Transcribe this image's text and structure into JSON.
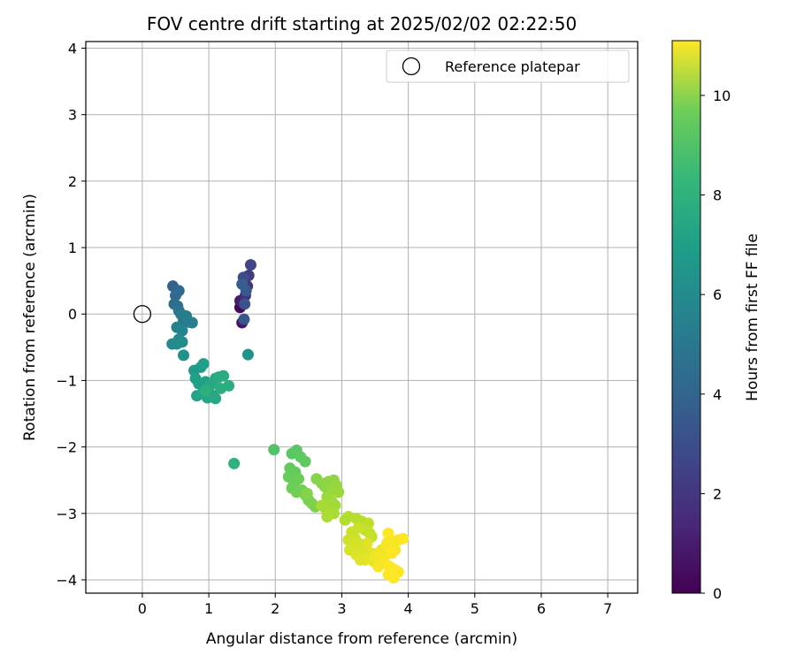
{
  "chart_data": {
    "type": "scatter",
    "title": "FOV centre drift starting at 2025/02/02 02:22:50",
    "xlabel": "Angular distance from reference (arcmin)",
    "ylabel": "Rotation from reference (arcmin)",
    "xlim": [
      -0.85,
      7.45
    ],
    "ylim": [
      -4.2,
      4.1
    ],
    "x_ticks": [
      0,
      1,
      2,
      3,
      4,
      5,
      6,
      7
    ],
    "y_ticks": [
      -4,
      -3,
      -2,
      -1,
      0,
      1,
      2,
      3,
      4
    ],
    "grid": true,
    "legend": {
      "placement": "top-right",
      "entries": [
        "Reference platepar"
      ]
    },
    "reference_point": {
      "name": "Reference platepar",
      "x": 0,
      "y": 0,
      "marker": "open-circle"
    },
    "colorbar": {
      "label": "Hours from first FF file",
      "min": 0,
      "max": 11.1,
      "ticks": [
        0,
        2,
        4,
        6,
        8,
        10
      ],
      "colormap": "viridis"
    },
    "points": [
      {
        "x": 1.47,
        "y": 0.1,
        "t": 0.2
      },
      {
        "x": 1.48,
        "y": 0.18,
        "t": 0.3
      },
      {
        "x": 1.5,
        "y": -0.13,
        "t": 0.6
      },
      {
        "x": 1.47,
        "y": 0.2,
        "t": 0.9
      },
      {
        "x": 1.55,
        "y": 0.28,
        "t": 1.5
      },
      {
        "x": 1.58,
        "y": 0.42,
        "t": 1.8
      },
      {
        "x": 1.6,
        "y": 0.58,
        "t": 2.0
      },
      {
        "x": 1.63,
        "y": 0.74,
        "t": 2.3
      },
      {
        "x": 1.52,
        "y": 0.55,
        "t": 2.6
      },
      {
        "x": 1.54,
        "y": 0.15,
        "t": 2.8
      },
      {
        "x": 1.53,
        "y": -0.08,
        "t": 3.0
      },
      {
        "x": 1.56,
        "y": 0.35,
        "t": 3.1
      },
      {
        "x": 1.5,
        "y": 0.45,
        "t": 3.3
      },
      {
        "x": 0.46,
        "y": 0.42,
        "t": 3.5
      },
      {
        "x": 0.55,
        "y": 0.35,
        "t": 3.7
      },
      {
        "x": 0.5,
        "y": 0.28,
        "t": 3.8
      },
      {
        "x": 0.48,
        "y": 0.15,
        "t": 3.9
      },
      {
        "x": 0.53,
        "y": 0.12,
        "t": 4.0
      },
      {
        "x": 0.55,
        "y": 0.05,
        "t": 4.2
      },
      {
        "x": 0.58,
        "y": 0.0,
        "t": 4.4
      },
      {
        "x": 0.62,
        "y": -0.1,
        "t": 4.5
      },
      {
        "x": 0.7,
        "y": -0.12,
        "t": 4.6
      },
      {
        "x": 0.75,
        "y": -0.13,
        "t": 4.7
      },
      {
        "x": 0.66,
        "y": -0.03,
        "t": 4.8
      },
      {
        "x": 0.52,
        "y": -0.2,
        "t": 4.9
      },
      {
        "x": 0.6,
        "y": -0.25,
        "t": 5.0
      },
      {
        "x": 0.55,
        "y": -0.38,
        "t": 5.1
      },
      {
        "x": 0.45,
        "y": -0.45,
        "t": 5.2
      },
      {
        "x": 0.52,
        "y": -0.45,
        "t": 5.3
      },
      {
        "x": 0.6,
        "y": -0.42,
        "t": 5.4
      },
      {
        "x": 0.62,
        "y": -0.62,
        "t": 5.6
      },
      {
        "x": 1.59,
        "y": -0.61,
        "t": 5.7
      },
      {
        "x": 0.78,
        "y": -0.85,
        "t": 6.0
      },
      {
        "x": 0.88,
        "y": -0.8,
        "t": 6.1
      },
      {
        "x": 0.92,
        "y": -0.75,
        "t": 6.2
      },
      {
        "x": 0.8,
        "y": -0.97,
        "t": 6.2
      },
      {
        "x": 0.85,
        "y": -1.05,
        "t": 6.3
      },
      {
        "x": 0.95,
        "y": -1.02,
        "t": 6.3
      },
      {
        "x": 1.0,
        "y": -1.1,
        "t": 6.4
      },
      {
        "x": 0.82,
        "y": -1.23,
        "t": 6.4
      },
      {
        "x": 0.9,
        "y": -1.2,
        "t": 6.5
      },
      {
        "x": 0.98,
        "y": -1.26,
        "t": 6.5
      },
      {
        "x": 1.05,
        "y": -1.22,
        "t": 6.6
      },
      {
        "x": 1.1,
        "y": -1.27,
        "t": 6.6
      },
      {
        "x": 1.05,
        "y": -1.05,
        "t": 6.7
      },
      {
        "x": 1.1,
        "y": -0.97,
        "t": 6.7
      },
      {
        "x": 1.15,
        "y": -0.95,
        "t": 6.8
      },
      {
        "x": 1.22,
        "y": -0.93,
        "t": 6.8
      },
      {
        "x": 1.18,
        "y": -1.12,
        "t": 6.9
      },
      {
        "x": 1.3,
        "y": -1.08,
        "t": 6.9
      },
      {
        "x": 0.95,
        "y": -1.15,
        "t": 7.0
      },
      {
        "x": 1.38,
        "y": -2.25,
        "t": 7.1
      },
      {
        "x": 1.98,
        "y": -2.04,
        "t": 8.0
      },
      {
        "x": 2.25,
        "y": -2.1,
        "t": 8.2
      },
      {
        "x": 2.32,
        "y": -2.05,
        "t": 8.2
      },
      {
        "x": 2.38,
        "y": -2.15,
        "t": 8.3
      },
      {
        "x": 2.45,
        "y": -2.22,
        "t": 8.3
      },
      {
        "x": 2.22,
        "y": -2.32,
        "t": 8.4
      },
      {
        "x": 2.3,
        "y": -2.38,
        "t": 8.4
      },
      {
        "x": 2.2,
        "y": -2.45,
        "t": 8.5
      },
      {
        "x": 2.28,
        "y": -2.55,
        "t": 8.5
      },
      {
        "x": 2.35,
        "y": -2.48,
        "t": 8.6
      },
      {
        "x": 2.25,
        "y": -2.62,
        "t": 8.6
      },
      {
        "x": 2.32,
        "y": -2.68,
        "t": 8.7
      },
      {
        "x": 2.4,
        "y": -2.65,
        "t": 8.7
      },
      {
        "x": 2.45,
        "y": -2.72,
        "t": 8.8
      },
      {
        "x": 2.5,
        "y": -2.8,
        "t": 8.8
      },
      {
        "x": 2.55,
        "y": -2.85,
        "t": 8.9
      },
      {
        "x": 2.6,
        "y": -2.9,
        "t": 8.9
      },
      {
        "x": 2.48,
        "y": -2.7,
        "t": 9.0
      },
      {
        "x": 2.62,
        "y": -2.48,
        "t": 9.0
      },
      {
        "x": 2.7,
        "y": -2.55,
        "t": 9.1
      },
      {
        "x": 2.75,
        "y": -2.6,
        "t": 9.1
      },
      {
        "x": 2.8,
        "y": -2.52,
        "t": 9.2
      },
      {
        "x": 2.88,
        "y": -2.5,
        "t": 9.2
      },
      {
        "x": 2.92,
        "y": -2.58,
        "t": 9.3
      },
      {
        "x": 2.85,
        "y": -2.65,
        "t": 9.3
      },
      {
        "x": 2.95,
        "y": -2.68,
        "t": 9.4
      },
      {
        "x": 2.78,
        "y": -2.75,
        "t": 9.4
      },
      {
        "x": 2.85,
        "y": -2.82,
        "t": 9.5
      },
      {
        "x": 2.9,
        "y": -2.88,
        "t": 9.5
      },
      {
        "x": 2.75,
        "y": -2.92,
        "t": 9.6
      },
      {
        "x": 2.7,
        "y": -2.88,
        "t": 9.6
      },
      {
        "x": 2.78,
        "y": -3.05,
        "t": 9.7
      },
      {
        "x": 2.88,
        "y": -3.0,
        "t": 9.7
      },
      {
        "x": 3.05,
        "y": -3.1,
        "t": 9.8
      },
      {
        "x": 3.1,
        "y": -3.05,
        "t": 9.8
      },
      {
        "x": 3.22,
        "y": -3.08,
        "t": 9.9
      },
      {
        "x": 3.3,
        "y": -3.12,
        "t": 9.9
      },
      {
        "x": 3.4,
        "y": -3.15,
        "t": 10.0
      },
      {
        "x": 3.42,
        "y": -3.3,
        "t": 10.0
      },
      {
        "x": 3.45,
        "y": -3.35,
        "t": 10.1
      },
      {
        "x": 3.35,
        "y": -3.25,
        "t": 10.1
      },
      {
        "x": 3.25,
        "y": -3.22,
        "t": 10.2
      },
      {
        "x": 3.15,
        "y": -3.28,
        "t": 10.2
      },
      {
        "x": 3.1,
        "y": -3.4,
        "t": 10.3
      },
      {
        "x": 3.2,
        "y": -3.38,
        "t": 10.3
      },
      {
        "x": 3.18,
        "y": -3.5,
        "t": 10.4
      },
      {
        "x": 3.12,
        "y": -3.55,
        "t": 10.4
      },
      {
        "x": 3.22,
        "y": -3.62,
        "t": 10.5
      },
      {
        "x": 3.3,
        "y": -3.55,
        "t": 10.5
      },
      {
        "x": 3.38,
        "y": -3.45,
        "t": 10.6
      },
      {
        "x": 3.45,
        "y": -3.6,
        "t": 10.6
      },
      {
        "x": 3.35,
        "y": -3.7,
        "t": 10.7
      },
      {
        "x": 3.48,
        "y": -3.72,
        "t": 10.7
      },
      {
        "x": 3.55,
        "y": -3.6,
        "t": 10.8
      },
      {
        "x": 3.6,
        "y": -3.55,
        "t": 10.8
      },
      {
        "x": 3.65,
        "y": -3.62,
        "t": 10.9
      },
      {
        "x": 3.7,
        "y": -3.5,
        "t": 10.9
      },
      {
        "x": 3.72,
        "y": -3.4,
        "t": 11.0
      },
      {
        "x": 3.78,
        "y": -3.45,
        "t": 11.0
      },
      {
        "x": 3.8,
        "y": -3.55,
        "t": 11.0
      },
      {
        "x": 3.85,
        "y": -3.4,
        "t": 11.0
      },
      {
        "x": 3.92,
        "y": -3.38,
        "t": 11.1
      },
      {
        "x": 3.7,
        "y": -3.3,
        "t": 11.1
      },
      {
        "x": 3.65,
        "y": -3.75,
        "t": 11.1
      },
      {
        "x": 3.72,
        "y": -3.8,
        "t": 11.1
      },
      {
        "x": 3.8,
        "y": -3.85,
        "t": 11.1
      },
      {
        "x": 3.7,
        "y": -3.92,
        "t": 11.1
      },
      {
        "x": 3.78,
        "y": -3.97,
        "t": 11.1
      },
      {
        "x": 3.85,
        "y": -3.88,
        "t": 11.1
      },
      {
        "x": 3.6,
        "y": -3.7,
        "t": 11.0
      },
      {
        "x": 3.55,
        "y": -3.8,
        "t": 11.0
      },
      {
        "x": 3.5,
        "y": -3.65,
        "t": 10.9
      },
      {
        "x": 3.28,
        "y": -3.7,
        "t": 10.6
      },
      {
        "x": 3.25,
        "y": -3.45,
        "t": 10.4
      },
      {
        "x": 3.75,
        "y": -3.6,
        "t": 11.1
      },
      {
        "x": 3.68,
        "y": -3.45,
        "t": 11.0
      }
    ]
  }
}
